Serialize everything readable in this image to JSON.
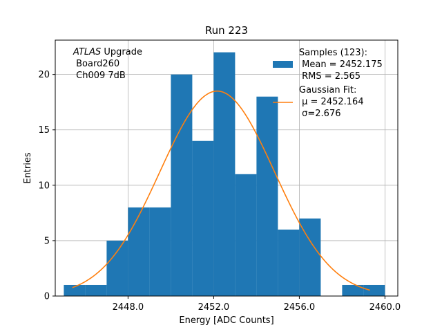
{
  "chart_data": {
    "type": "bar",
    "title": "Run 223",
    "xlabel": "Energy [ADC Counts]",
    "ylabel": "Entries",
    "xlim": [
      2444.6,
      2460.6
    ],
    "ylim": [
      0,
      23.1
    ],
    "xticks": [
      2448.0,
      2452.0,
      2456.0,
      2460.0
    ],
    "xtick_labels": [
      "2448.0",
      "2452.0",
      "2456.0",
      "2460.0"
    ],
    "yticks": [
      0,
      5,
      10,
      15,
      20
    ],
    "ytick_labels": [
      "0",
      "5",
      "10",
      "15",
      "20"
    ],
    "grid": true,
    "bin_width": 1,
    "bins": [
      {
        "x0": 2445,
        "count": 1
      },
      {
        "x0": 2446,
        "count": 1
      },
      {
        "x0": 2447,
        "count": 5
      },
      {
        "x0": 2448,
        "count": 8
      },
      {
        "x0": 2449,
        "count": 8
      },
      {
        "x0": 2450,
        "count": 20
      },
      {
        "x0": 2451,
        "count": 14
      },
      {
        "x0": 2452,
        "count": 22
      },
      {
        "x0": 2453,
        "count": 11
      },
      {
        "x0": 2454,
        "count": 18
      },
      {
        "x0": 2455,
        "count": 6
      },
      {
        "x0": 2456,
        "count": 7
      },
      {
        "x0": 2457,
        "count": 0
      },
      {
        "x0": 2458,
        "count": 1
      },
      {
        "x0": 2459,
        "count": 1
      }
    ],
    "fit": {
      "type": "gaussian",
      "mu": 2452.164,
      "sigma": 2.676,
      "peak": 18.5,
      "x_range": [
        2445.4,
        2459.3
      ]
    },
    "annotation": {
      "italic": "ATLAS",
      "line1_rest": " Upgrade",
      "line2": " Board260",
      "line3": " Ch009 7dB"
    },
    "legend": {
      "location": "top-right",
      "samples": {
        "line1": "Samples (123):",
        "line2": " Mean = 2452.175",
        "line3": " RMS = 2.565"
      },
      "fit": {
        "line1": "Gaussian Fit:",
        "line2": " μ = 2452.164",
        "line3": " σ=2.676"
      }
    },
    "colors": {
      "bars": "#1f77b4",
      "fit_line": "#ff7f0e",
      "grid": "#b0b0b0",
      "axes": "#000000"
    }
  }
}
